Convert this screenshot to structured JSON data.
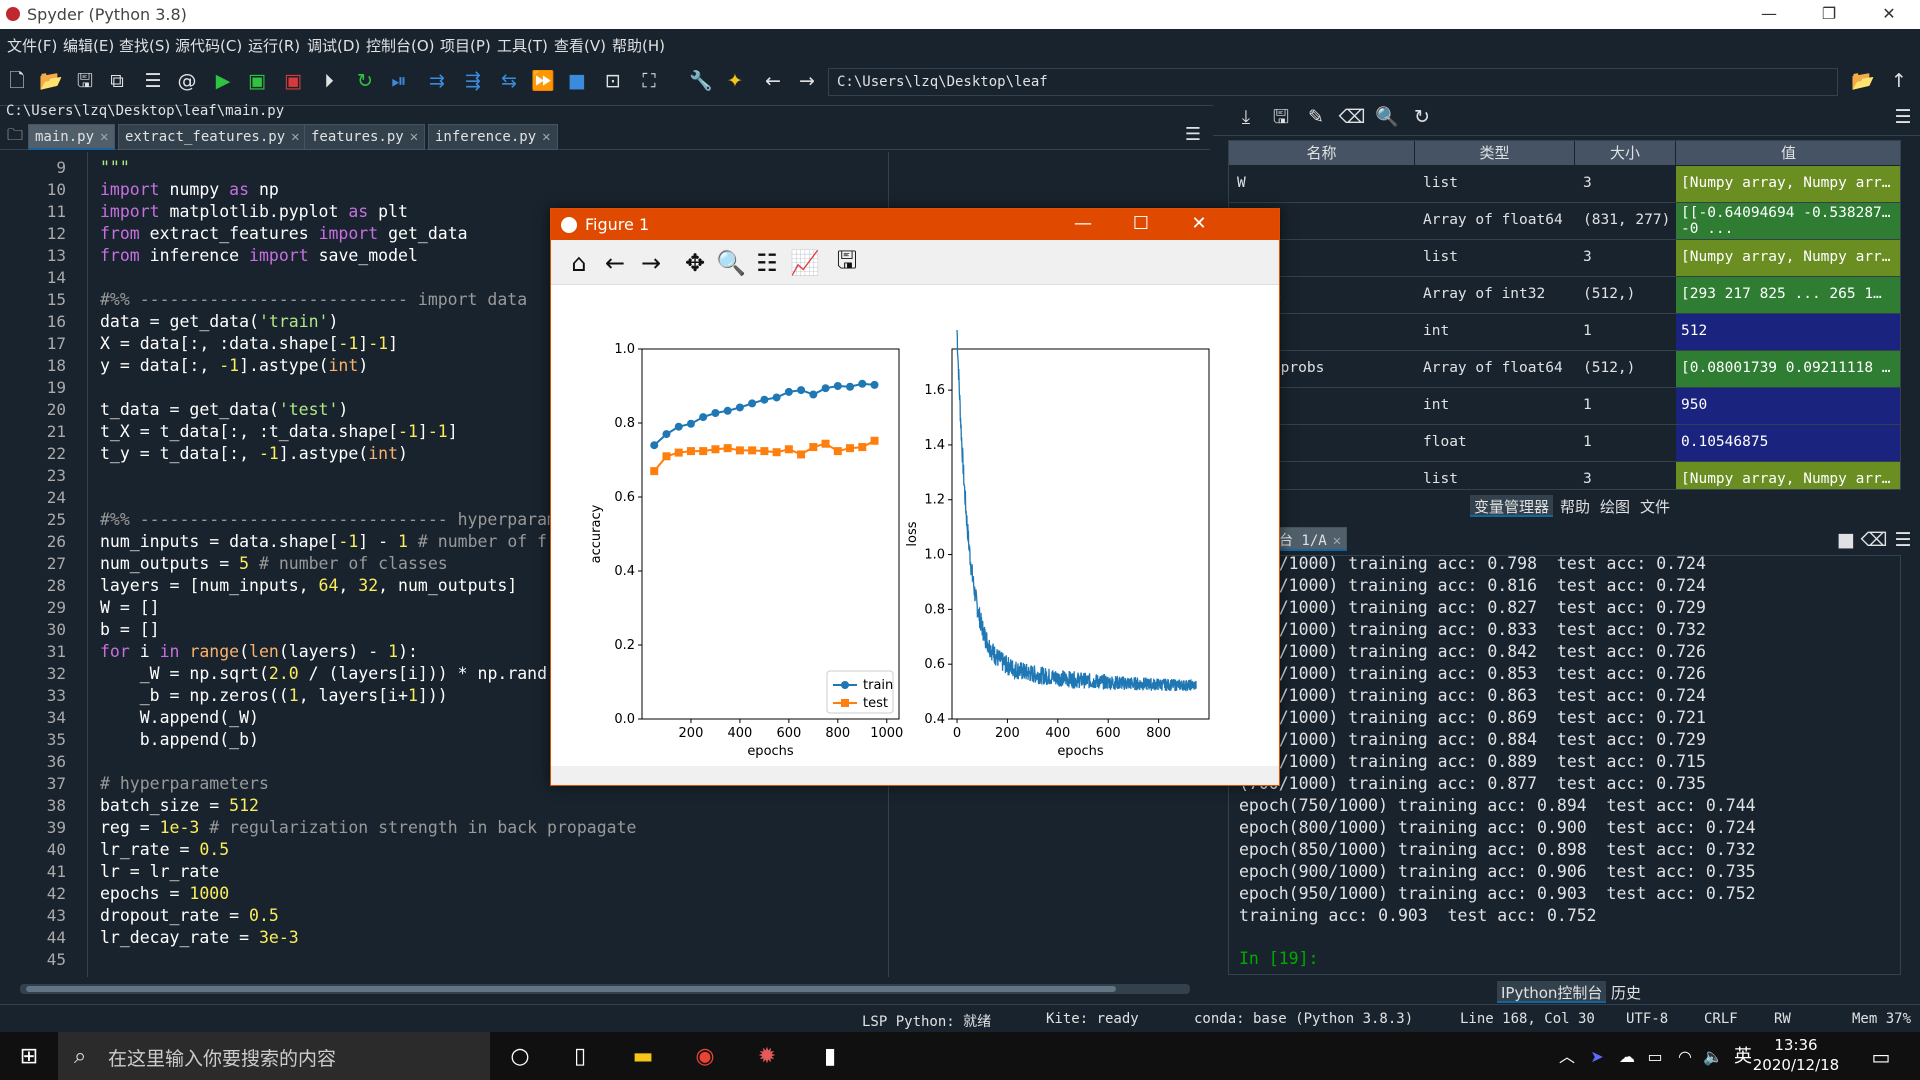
{
  "window": {
    "title": "Spyder (Python 3.8)",
    "min": "—",
    "restore": "❐",
    "close": "✕"
  },
  "menu": [
    "文件(F)",
    "编辑(E)",
    "查找(S)",
    "源代码(C)",
    "运行(R)",
    "调试(D)",
    "控制台(O)",
    "项目(P)",
    "工具(T)",
    "查看(V)",
    "帮助(H)"
  ],
  "toolbar": {
    "path": "C:\\Users\\lzq\\Desktop\\leaf"
  },
  "editor": {
    "file_path": "C:\\Users\\lzq\\Desktop\\leaf\\main.py",
    "tabs": [
      "main.py",
      "extract_features.py",
      "features.py",
      "inference.py"
    ],
    "line_numbers": [
      "9",
      "10",
      "11",
      "12",
      "13",
      "14",
      "15",
      "16",
      "17",
      "18",
      "19",
      "20",
      "21",
      "22",
      "23",
      "24",
      "25",
      "26",
      "27",
      "28",
      "29",
      "30",
      "31",
      "32",
      "33",
      "34",
      "35",
      "36",
      "37",
      "38",
      "39",
      "40",
      "41",
      "42",
      "43",
      "44",
      "45"
    ]
  },
  "variables": {
    "headers": {
      "name": "名称",
      "type": "类型",
      "size": "大小",
      "value": "值"
    },
    "rows": [
      {
        "name": "W",
        "type": "list",
        "size": "3",
        "value": "[Numpy array, Numpy arr…",
        "color": "#6b8e23"
      },
      {
        "name": "",
        "type": "Array of float64",
        "size": "(831, 277)",
        "value": "[[-0.64094694 -0.538287…",
        "value2": "-0 ...",
        "color": "#2e7d32"
      },
      {
        "name": "",
        "type": "list",
        "size": "3",
        "value": "[Numpy array, Numpy arr…",
        "color": "#6b8e23"
      },
      {
        "name": "_mask",
        "type": "Array of int32",
        "size": "(512,)",
        "value": "[293 217 825 ... 265  1…",
        "color": "#2e7d32"
      },
      {
        "name": "_size",
        "type": "int",
        "size": "1",
        "value": "512",
        "color": "#1a237e"
      },
      {
        "name": "t_logprobs",
        "type": "Array of float64",
        "size": "(512,)",
        "value": "[0.08001739 0.09211118 …",
        "color": "#2e7d32"
      },
      {
        "name": "poch",
        "type": "int",
        "size": "1",
        "value": "950",
        "color": "#1a237e"
      },
      {
        "name": "ter",
        "type": "float",
        "size": "1",
        "value": "0.10546875",
        "color": "#1a237e"
      },
      {
        "name": "",
        "type": "list",
        "size": "3",
        "value": "[Numpy array, Numpy arr…",
        "color": "#6b8e23"
      }
    ],
    "pane_tabs": [
      "变量管理器",
      "帮助",
      "绘图",
      "文件"
    ]
  },
  "console": {
    "tab": "台 1/A",
    "lines": [
      "(200/1000) training acc: 0.798  test acc: 0.724",
      "(250/1000) training acc: 0.816  test acc: 0.724",
      "(300/1000) training acc: 0.827  test acc: 0.729",
      "(350/1000) training acc: 0.833  test acc: 0.732",
      "(400/1000) training acc: 0.842  test acc: 0.726",
      "(450/1000) training acc: 0.853  test acc: 0.726",
      "(500/1000) training acc: 0.863  test acc: 0.724",
      "(550/1000) training acc: 0.869  test acc: 0.721",
      "(600/1000) training acc: 0.884  test acc: 0.729",
      "(650/1000) training acc: 0.889  test acc: 0.715",
      "(700/1000) training acc: 0.877  test acc: 0.735",
      "epoch(750/1000) training acc: 0.894  test acc: 0.744",
      "epoch(800/1000) training acc: 0.900  test acc: 0.724",
      "epoch(850/1000) training acc: 0.898  test acc: 0.732",
      "epoch(900/1000) training acc: 0.906  test acc: 0.735",
      "epoch(950/1000) training acc: 0.903  test acc: 0.752",
      "training acc: 0.903  test acc: 0.752"
    ],
    "prompt": "In [19]:",
    "pane_tabs": [
      "IPython控制台",
      "历史"
    ]
  },
  "status": {
    "lsp": "LSP Python: 就绪",
    "kite": "Kite: ready",
    "conda": "conda: base (Python 3.8.3)",
    "line": "Line 168, Col 30",
    "encoding": "UTF-8",
    "eol": "CRLF",
    "rw": "RW",
    "mem": "Mem 37%"
  },
  "taskbar": {
    "search": "在这里输入你要搜索的内容",
    "time": "13:36",
    "date": "2020/12/18",
    "ime": "英"
  },
  "figure": {
    "title": "Figure 1"
  },
  "chart_data": [
    {
      "type": "line",
      "xlabel": "epochs",
      "ylabel": "accuracy",
      "xlim": [
        0,
        1050
      ],
      "ylim": [
        0,
        1.0
      ],
      "xticks": [
        200,
        400,
        600,
        800,
        1000
      ],
      "yticks": [
        0.0,
        0.2,
        0.4,
        0.6,
        0.8,
        1.0
      ],
      "legend": "lower-right",
      "series": [
        {
          "name": "train",
          "color": "#1f77b4",
          "marker": "circle",
          "x": [
            50,
            100,
            150,
            200,
            250,
            300,
            350,
            400,
            450,
            500,
            550,
            600,
            650,
            700,
            750,
            800,
            850,
            900,
            950
          ],
          "y": [
            0.74,
            0.77,
            0.79,
            0.798,
            0.816,
            0.827,
            0.833,
            0.842,
            0.853,
            0.863,
            0.869,
            0.884,
            0.889,
            0.877,
            0.894,
            0.9,
            0.898,
            0.906,
            0.903
          ]
        },
        {
          "name": "test",
          "color": "#ff7f0e",
          "marker": "square",
          "x": [
            50,
            100,
            150,
            200,
            250,
            300,
            350,
            400,
            450,
            500,
            550,
            600,
            650,
            700,
            750,
            800,
            850,
            900,
            950
          ],
          "y": [
            0.67,
            0.71,
            0.72,
            0.724,
            0.724,
            0.729,
            0.732,
            0.726,
            0.726,
            0.724,
            0.721,
            0.729,
            0.715,
            0.735,
            0.744,
            0.724,
            0.732,
            0.735,
            0.752
          ]
        }
      ]
    },
    {
      "type": "line",
      "xlabel": "epochs",
      "ylabel": "loss",
      "xlim": [
        -20,
        1000
      ],
      "ylim": [
        0.4,
        1.75
      ],
      "xticks": [
        0,
        200,
        400,
        600,
        800
      ],
      "yticks": [
        0.4,
        0.6,
        0.8,
        1.0,
        1.2,
        1.4,
        1.6
      ],
      "series": [
        {
          "color": "#1f77b4",
          "start": 1.7,
          "end": 0.52,
          "points": 950
        }
      ]
    }
  ]
}
